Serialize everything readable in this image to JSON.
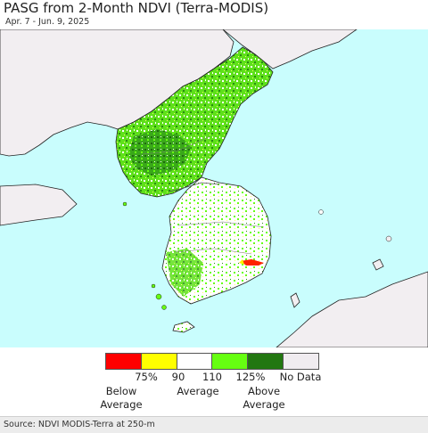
{
  "header": {
    "title": "PASG from 2-Month NDVI (Terra-MODIS)",
    "date_range": "Apr. 7 - Jun. 9, 2025"
  },
  "map": {
    "colors": {
      "water": "#c9fdfd",
      "foreign_land": "#f2eef1",
      "coast": "#222222"
    }
  },
  "legend": {
    "swatches": [
      {
        "color": "#ff0000"
      },
      {
        "color": "#ffff00"
      },
      {
        "color": "#ffffff"
      },
      {
        "color": "#66ff11"
      },
      {
        "color": "#227711"
      },
      {
        "color": "#f0ecf0"
      }
    ],
    "ticks": [
      "75%",
      "90",
      "110",
      "125%",
      "No Data"
    ],
    "below_average": "Below\nAverage",
    "average": "Average",
    "above_average": "Above\nAverage"
  },
  "footer": {
    "source": "Source: NDVI MODIS-Terra at 250-m"
  }
}
